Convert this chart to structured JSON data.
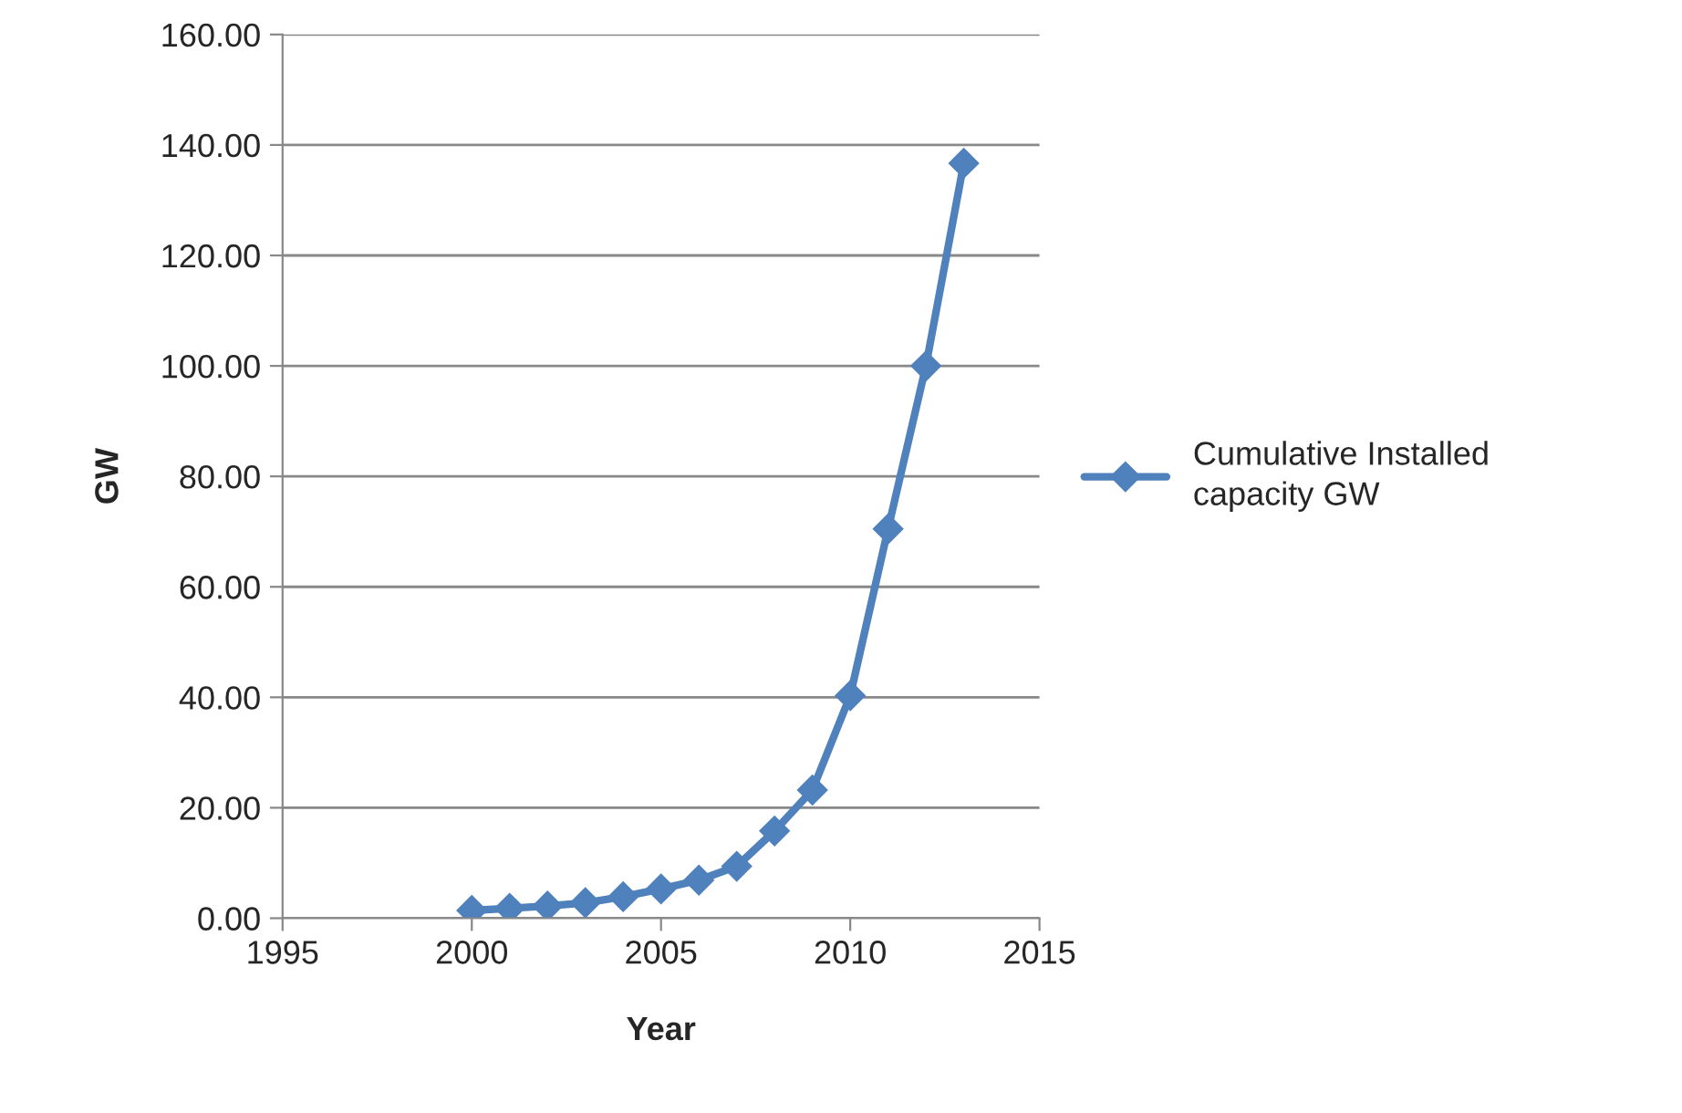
{
  "chart_data": {
    "type": "line",
    "xlabel": "Year",
    "ylabel": "GW",
    "x": [
      2000,
      2001,
      2002,
      2003,
      2004,
      2005,
      2006,
      2007,
      2008,
      2009,
      2010,
      2011,
      2012,
      2013
    ],
    "series": [
      {
        "name": "Cumulative Installed capacity GW",
        "color": "#4f81bd",
        "values": [
          1.4,
          1.8,
          2.2,
          2.8,
          3.9,
          5.3,
          6.9,
          9.4,
          15.8,
          23.2,
          40.3,
          70.5,
          100.0,
          136.7
        ]
      }
    ],
    "xlim": [
      1995,
      2015
    ],
    "xticks": [
      1995,
      2000,
      2005,
      2010,
      2015
    ],
    "ylim": [
      0,
      160
    ],
    "yticks": [
      {
        "value": 0,
        "label": "0.00"
      },
      {
        "value": 20,
        "label": "20.00"
      },
      {
        "value": 40,
        "label": "40.00"
      },
      {
        "value": 60,
        "label": "60.00"
      },
      {
        "value": 80,
        "label": "80.00"
      },
      {
        "value": 100,
        "label": "100.00"
      },
      {
        "value": 120,
        "label": "120.00"
      },
      {
        "value": 140,
        "label": "140.00"
      },
      {
        "value": 160,
        "label": "160.00"
      }
    ],
    "grid": "y",
    "legend": "right",
    "marker": "diamond",
    "line_style": "solid"
  }
}
